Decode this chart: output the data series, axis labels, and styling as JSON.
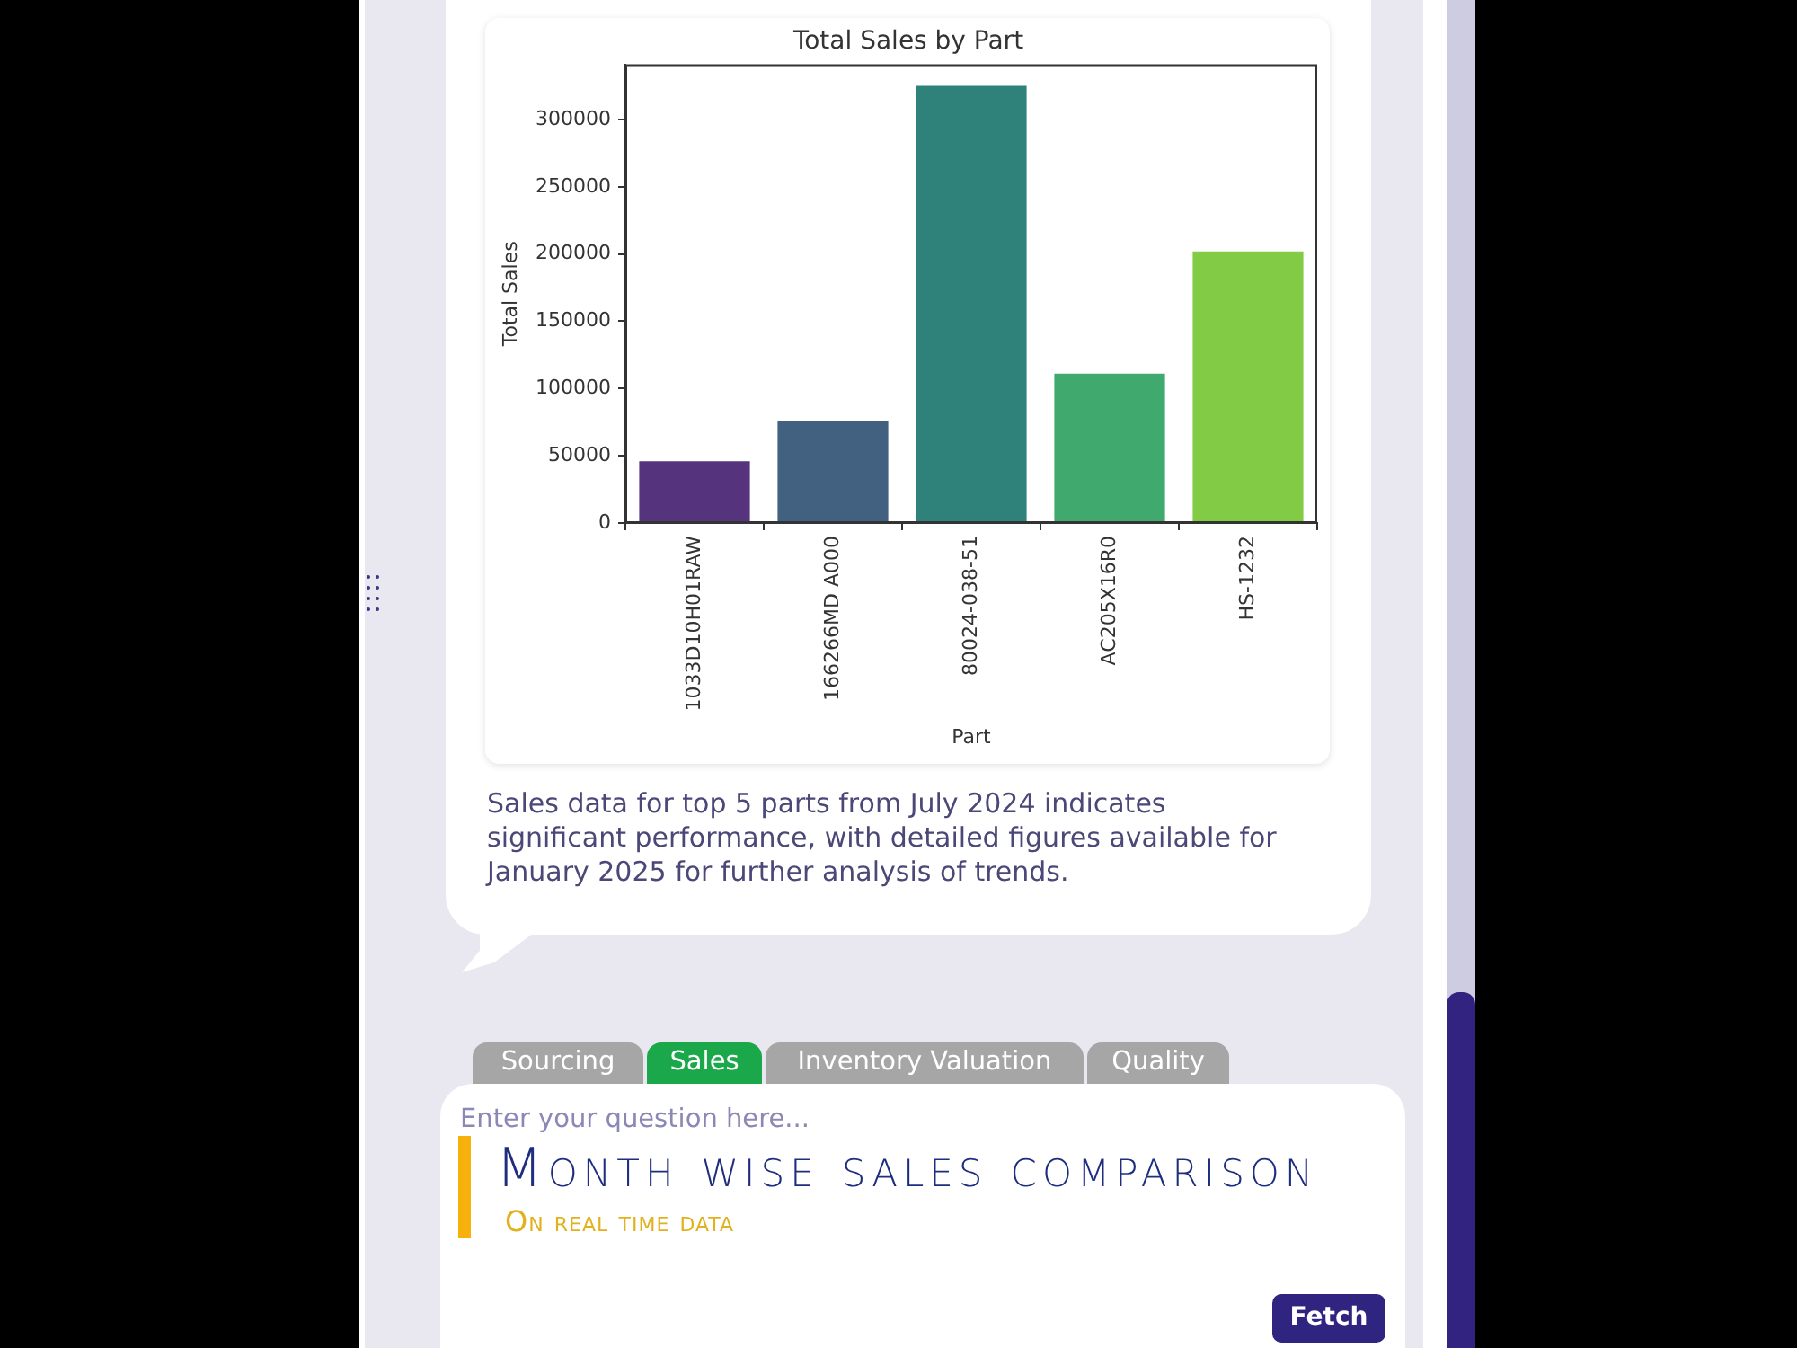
{
  "chart_data": {
    "type": "bar",
    "title": "Total Sales by Part",
    "xlabel": "Part",
    "ylabel": "Total Sales",
    "categories": [
      "1033D10H01RAW",
      "166266MD A000",
      "80024-038-51",
      "AC205X16R0",
      "HS-1232"
    ],
    "values": [
      46000,
      76000,
      325000,
      111000,
      202000
    ],
    "colors": [
      "#56337d",
      "#42607f",
      "#2f8279",
      "#40aa6e",
      "#82cc45"
    ],
    "ylim": [
      0,
      341000
    ],
    "yticks": [
      0,
      50000,
      100000,
      150000,
      200000,
      250000,
      300000
    ],
    "annotations": [
      "Sales data for top 5 parts from July 2024 indicates significant performance, with detailed figures available for January 2025 for further analysis of trends.",
      "Sourcing",
      "Sales",
      "Inventory Valuation",
      "Quality",
      "Enter your question here...",
      "Month wise sales comparison",
      "On real time data",
      "Fetch"
    ]
  }
}
